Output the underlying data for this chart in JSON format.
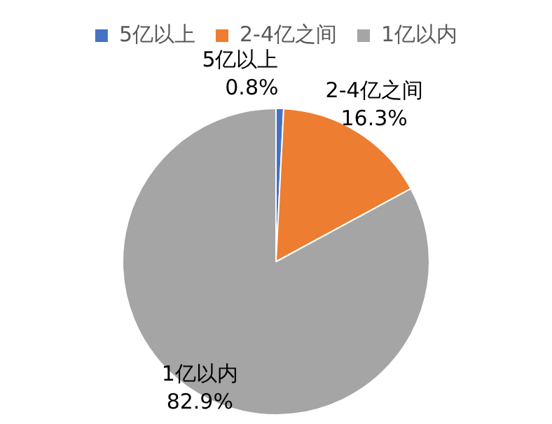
{
  "chart_data": {
    "type": "pie",
    "categories": [
      "5亿以上",
      "2-4亿之间",
      "1亿以内"
    ],
    "values": [
      0.8,
      16.3,
      82.9
    ],
    "colors": [
      "#4472c4",
      "#ed7d31",
      "#a5a5a5"
    ],
    "value_labels": [
      "0.8%",
      "16.3%",
      "82.9%"
    ],
    "legend": "top"
  }
}
